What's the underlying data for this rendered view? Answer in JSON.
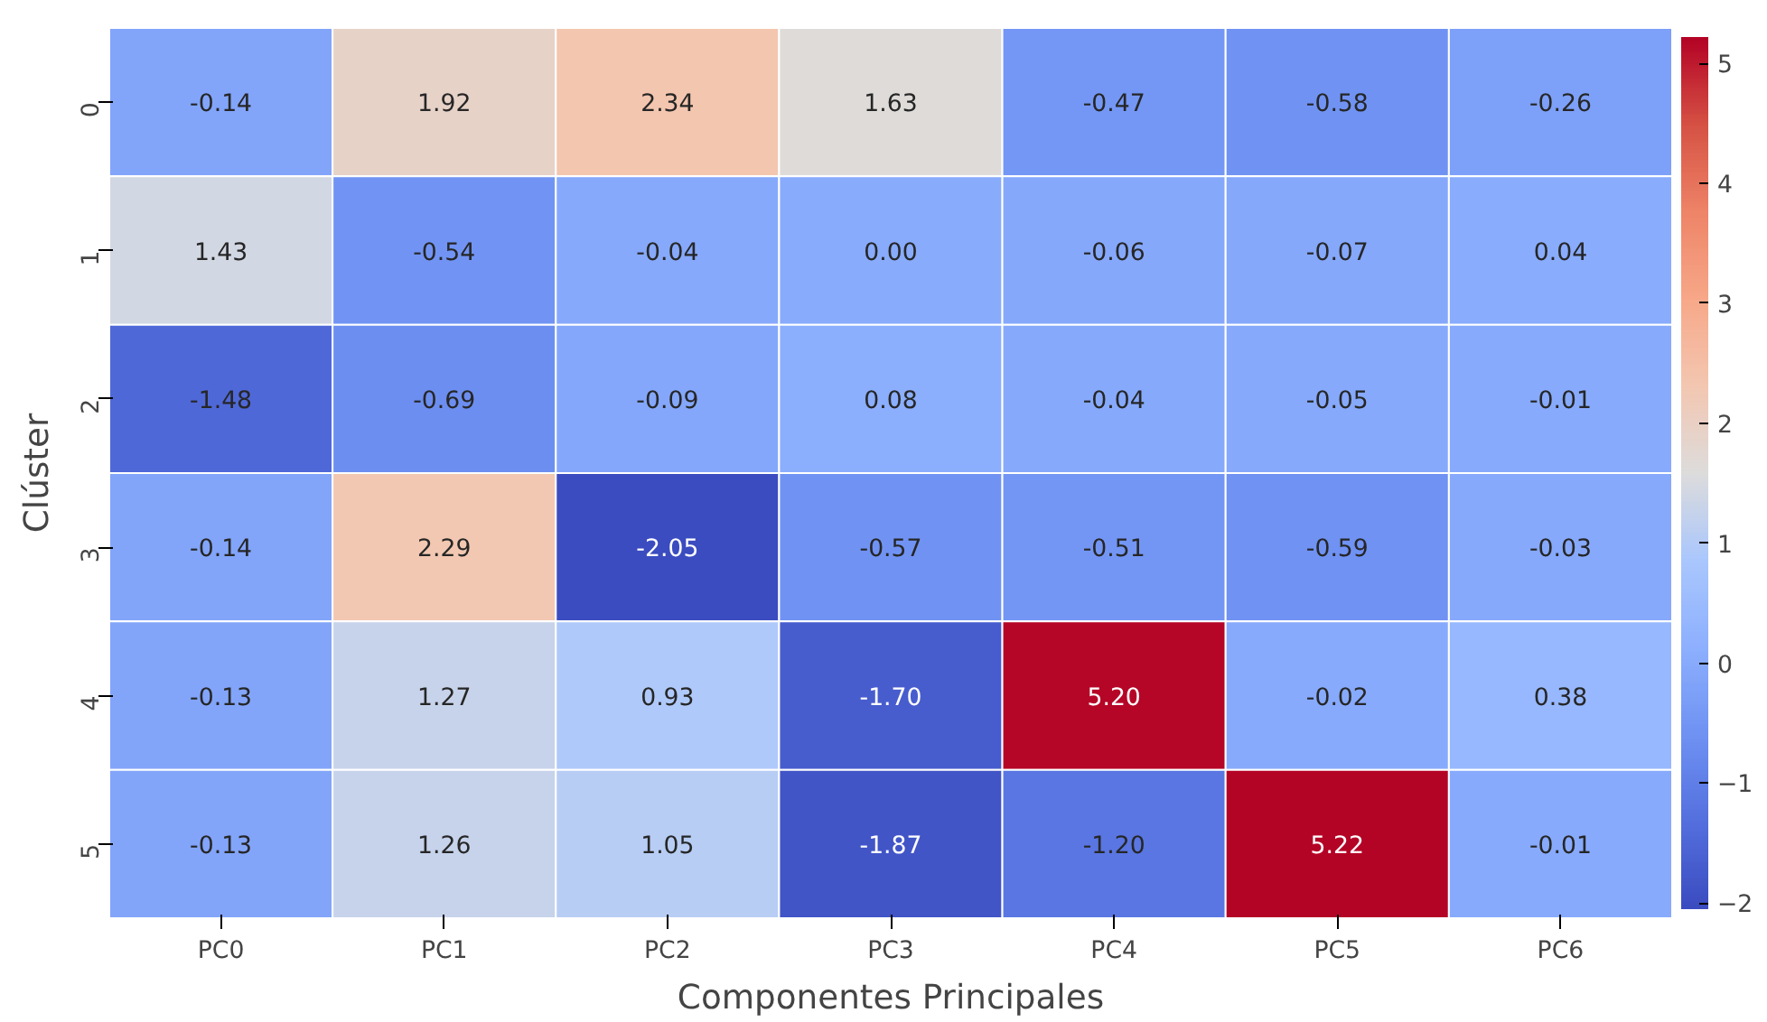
{
  "chart_data": {
    "type": "heatmap",
    "xlabel": "Componentes Principales",
    "ylabel": "Clúster",
    "categories": [
      "PC0",
      "PC1",
      "PC2",
      "PC3",
      "PC4",
      "PC5",
      "PC6"
    ],
    "y_categories": [
      "0",
      "1",
      "2",
      "3",
      "4",
      "5"
    ],
    "cells": [
      [
        -0.14,
        1.92,
        2.34,
        1.63,
        -0.47,
        -0.58,
        -0.26
      ],
      [
        1.43,
        -0.54,
        -0.04,
        0.0,
        -0.06,
        -0.07,
        0.04
      ],
      [
        -1.48,
        -0.69,
        -0.09,
        0.08,
        -0.04,
        -0.05,
        -0.01
      ],
      [
        -0.14,
        2.29,
        -2.05,
        -0.57,
        -0.51,
        -0.59,
        -0.03
      ],
      [
        -0.13,
        1.27,
        0.93,
        -1.7,
        5.2,
        -0.02,
        0.38
      ],
      [
        -0.13,
        1.26,
        1.05,
        -1.87,
        -1.2,
        5.22,
        -0.01
      ]
    ],
    "cell_labels": [
      [
        "-0.14",
        "1.92",
        "2.34",
        "1.63",
        "-0.47",
        "-0.58",
        "-0.26"
      ],
      [
        "1.43",
        "-0.54",
        "-0.04",
        "0.00",
        "-0.06",
        "-0.07",
        "0.04"
      ],
      [
        "-1.48",
        "-0.69",
        "-0.09",
        "0.08",
        "-0.04",
        "-0.05",
        "-0.01"
      ],
      [
        "-0.14",
        "2.29",
        "-2.05",
        "-0.57",
        "-0.51",
        "-0.59",
        "-0.03"
      ],
      [
        "-0.13",
        "1.27",
        "0.93",
        "-1.70",
        "5.20",
        "-0.02",
        "0.38"
      ],
      [
        "-0.13",
        "1.26",
        "1.05",
        "-1.87",
        "-1.20",
        "5.22",
        "-0.01"
      ]
    ],
    "clim": [
      -2.05,
      5.22
    ],
    "cticks": [
      -2,
      -1,
      0,
      1,
      2,
      3,
      4,
      5
    ]
  }
}
